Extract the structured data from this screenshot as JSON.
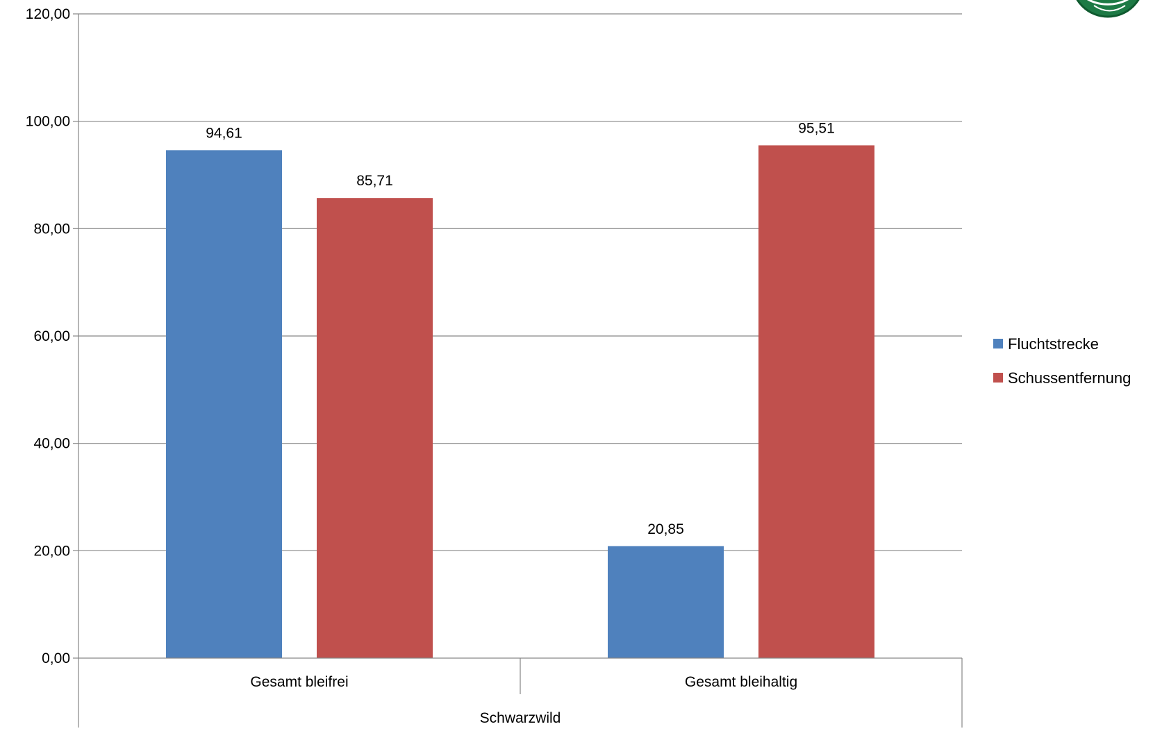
{
  "chart_data": {
    "type": "bar",
    "title": "",
    "xlabel": "",
    "ylabel": "",
    "categories": [
      "Gesamt bleifrei",
      "Gesamt bleihaltig"
    ],
    "group_label": "Schwarzwild",
    "series": [
      {
        "name": "Fluchtstrecke",
        "color": "#4F81BD",
        "values": [
          94.61,
          20.85
        ],
        "labels": [
          "94,61",
          "20,85"
        ]
      },
      {
        "name": "Schussentfernung",
        "color": "#C0504D",
        "values": [
          85.71,
          95.51
        ],
        "labels": [
          "85,71",
          "95,51"
        ]
      }
    ],
    "ylim": [
      0,
      120
    ],
    "yticks": [
      0,
      20,
      40,
      60,
      80,
      100,
      120
    ],
    "ytick_labels": [
      "0,00",
      "20,00",
      "40,00",
      "60,00",
      "80,00",
      "100,00",
      "120,00"
    ],
    "grid": true,
    "legend_position": "right",
    "logo_icon": "green-emblem-icon"
  }
}
